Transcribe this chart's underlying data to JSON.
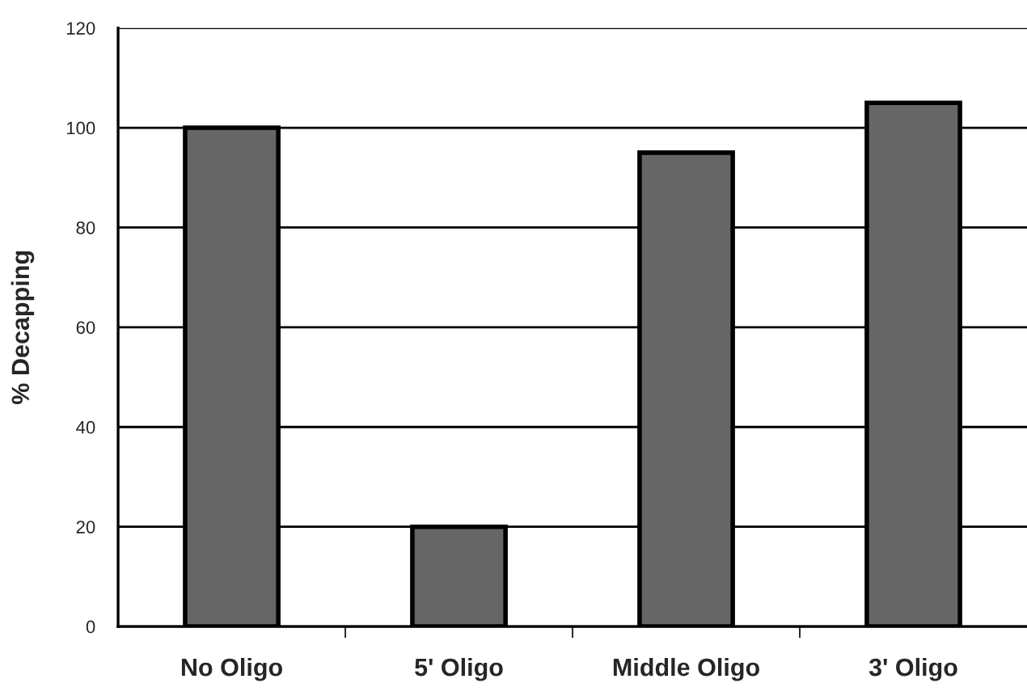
{
  "chart_data": {
    "type": "bar",
    "ylabel": "% Decapping",
    "categories": [
      "No Oligo",
      "5' Oligo",
      "Middle Oligo",
      "3' Oligo"
    ],
    "values": [
      100,
      20,
      95,
      105
    ],
    "color": "#666666",
    "ylim": [
      0,
      120
    ],
    "yticks": [
      0,
      20,
      40,
      60,
      80,
      100,
      120
    ],
    "grid": "y"
  }
}
